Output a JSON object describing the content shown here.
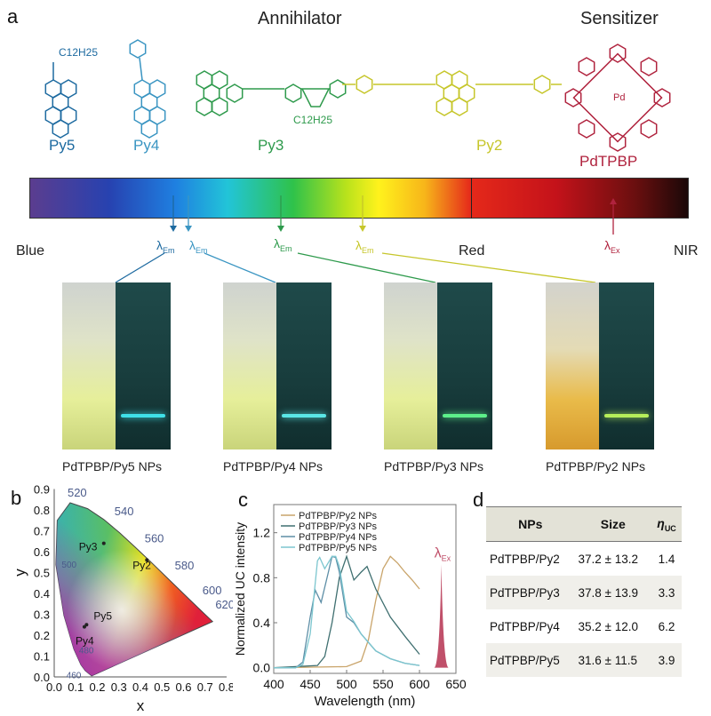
{
  "panel_a": {
    "letter": "a",
    "annihilator": "Annihilator",
    "sensitizer": "Sensitizer",
    "molecules": [
      {
        "name": "Py5",
        "sub": "C12H25",
        "color": "#1d6aa0"
      },
      {
        "name": "Py4",
        "color": "#3a95c2"
      },
      {
        "name": "Py3",
        "sub": "C12H25",
        "color": "#2e9a4c"
      },
      {
        "name": "Py2",
        "color": "#c6c62a"
      },
      {
        "name": "PdTPBP",
        "metal": "Pd",
        "color": "#b0233e"
      }
    ],
    "spectrum": {
      "blue": "Blue",
      "red": "Red",
      "nir": "NIR",
      "em": "λ",
      "em_sub": "Em",
      "ex": "λ",
      "ex_sub": "Ex"
    },
    "photos": [
      "PdTPBP/Py5 NPs",
      "PdTPBP/Py4 NPs",
      "PdTPBP/Py3 NPs",
      "PdTPBP/Py2 NPs"
    ]
  },
  "panel_b": {
    "letter": "b",
    "xlabel": "x",
    "ylabel": "y",
    "xticks": [
      "0.0",
      "0.1",
      "0.2",
      "0.3",
      "0.4",
      "0.5",
      "0.6",
      "0.7",
      "0.8"
    ],
    "yticks": [
      "0.0",
      "0.1",
      "0.2",
      "0.3",
      "0.4",
      "0.5",
      "0.6",
      "0.7",
      "0.8",
      "0.9"
    ],
    "wavelengths": [
      {
        "label": "460",
        "x": 0.15,
        "y": 0.02
      },
      {
        "label": "480",
        "x": 0.09,
        "y": 0.13
      },
      {
        "label": "500",
        "x": 0.01,
        "y": 0.54
      },
      {
        "label": "520",
        "x": 0.07,
        "y": 0.83
      },
      {
        "label": "540",
        "x": 0.23,
        "y": 0.75
      },
      {
        "label": "560",
        "x": 0.37,
        "y": 0.62
      },
      {
        "label": "580",
        "x": 0.51,
        "y": 0.49
      },
      {
        "label": "600",
        "x": 0.63,
        "y": 0.37
      },
      {
        "label": "620",
        "x": 0.69,
        "y": 0.31
      }
    ],
    "points": [
      {
        "label": "Py3",
        "x": 0.23,
        "y": 0.64
      },
      {
        "label": "Py2",
        "x": 0.43,
        "y": 0.56
      },
      {
        "label": "Py5",
        "x": 0.15,
        "y": 0.25
      },
      {
        "label": "Py4",
        "x": 0.14,
        "y": 0.24
      }
    ]
  },
  "chart_data": {
    "type": "line",
    "title": "",
    "xlabel": "Wavelength (nm)",
    "ylabel": "Normalized UC intensity",
    "xlim": [
      400,
      650
    ],
    "ylim": [
      -0.05,
      1.45
    ],
    "xticks": [
      "400",
      "450",
      "500",
      "550",
      "600",
      "650"
    ],
    "yticks": [
      "0.0",
      "0.4",
      "0.8",
      "1.2"
    ],
    "legend": "top-left",
    "series": [
      {
        "name": "PdTPBP/Py2 NPs",
        "color": "#c9a46a",
        "x": [
          400,
          500,
          520,
          530,
          540,
          550,
          560,
          570,
          580,
          590,
          600
        ],
        "y": [
          0,
          0.01,
          0.06,
          0.25,
          0.6,
          0.88,
          0.99,
          0.93,
          0.85,
          0.78,
          0.7
        ]
      },
      {
        "name": "PdTPBP/Py3 NPs",
        "color": "#3f6f70",
        "x": [
          400,
          460,
          470,
          480,
          490,
          500,
          510,
          520,
          528,
          540,
          560,
          580,
          600
        ],
        "y": [
          0,
          0.02,
          0.1,
          0.4,
          0.8,
          0.99,
          0.78,
          0.85,
          0.9,
          0.7,
          0.45,
          0.28,
          0.12
        ]
      },
      {
        "name": "PdTPBP/Py4 NPs",
        "color": "#5d8ea6",
        "x": [
          400,
          430,
          440,
          450,
          457,
          465,
          475,
          480,
          485,
          490,
          500,
          510,
          520,
          540,
          560,
          580,
          600
        ],
        "y": [
          0,
          0,
          0.05,
          0.45,
          0.69,
          0.58,
          0.85,
          0.99,
          0.98,
          0.85,
          0.45,
          0.4,
          0.3,
          0.15,
          0.08,
          0.04,
          0.02
        ]
      },
      {
        "name": "PdTPBP/Py5 NPs",
        "color": "#7cc6cf",
        "x": [
          400,
          430,
          440,
          450,
          460,
          463,
          470,
          480,
          485,
          490,
          500,
          510,
          520,
          540,
          560,
          580,
          600
        ],
        "y": [
          0,
          0,
          0.03,
          0.3,
          0.95,
          0.98,
          0.88,
          0.99,
          0.99,
          0.9,
          0.5,
          0.41,
          0.3,
          0.15,
          0.08,
          0.04,
          0.02
        ]
      }
    ],
    "excitation": {
      "label": "λ",
      "sub": "Ex",
      "x": 630,
      "color": "#c0506a"
    }
  },
  "panel_c": {
    "letter": "c"
  },
  "panel_d": {
    "letter": "d",
    "headers": [
      "NPs",
      "Size",
      "η",
      "UC"
    ],
    "rows": [
      [
        "PdTPBP/Py2",
        "37.2 ± 13.2",
        "1.4"
      ],
      [
        "PdTPBP/Py3",
        "37.8 ± 13.9",
        "3.3"
      ],
      [
        "PdTPBP/Py4",
        "35.2 ± 12.0",
        "6.2"
      ],
      [
        "PdTPBP/Py5",
        "31.6 ± 11.5",
        "3.9"
      ]
    ]
  }
}
